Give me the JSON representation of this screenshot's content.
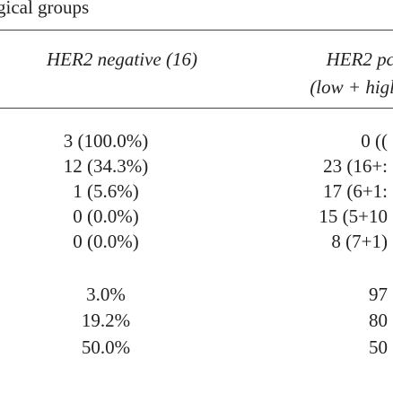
{
  "caption": "gical groups",
  "table": {
    "header": {
      "col1": "HER2 negative (16)",
      "col2": [
        "HER2 pc",
        "(low + higl"
      ]
    },
    "rows": [
      [
        "3 (100.0%)",
        "0 (("
      ],
      [
        "12 (34.3%)",
        "23 (16+:"
      ],
      [
        "1 (5.6%)",
        "17 (6+1:"
      ],
      [
        "0 (0.0%)",
        "15 (5+10"
      ],
      [
        "0 (0.0%)",
        "8 (7+1)"
      ],
      [
        "3.0%",
        "97"
      ],
      [
        "19.2%",
        "80"
      ],
      [
        "50.0%",
        "50"
      ]
    ]
  }
}
